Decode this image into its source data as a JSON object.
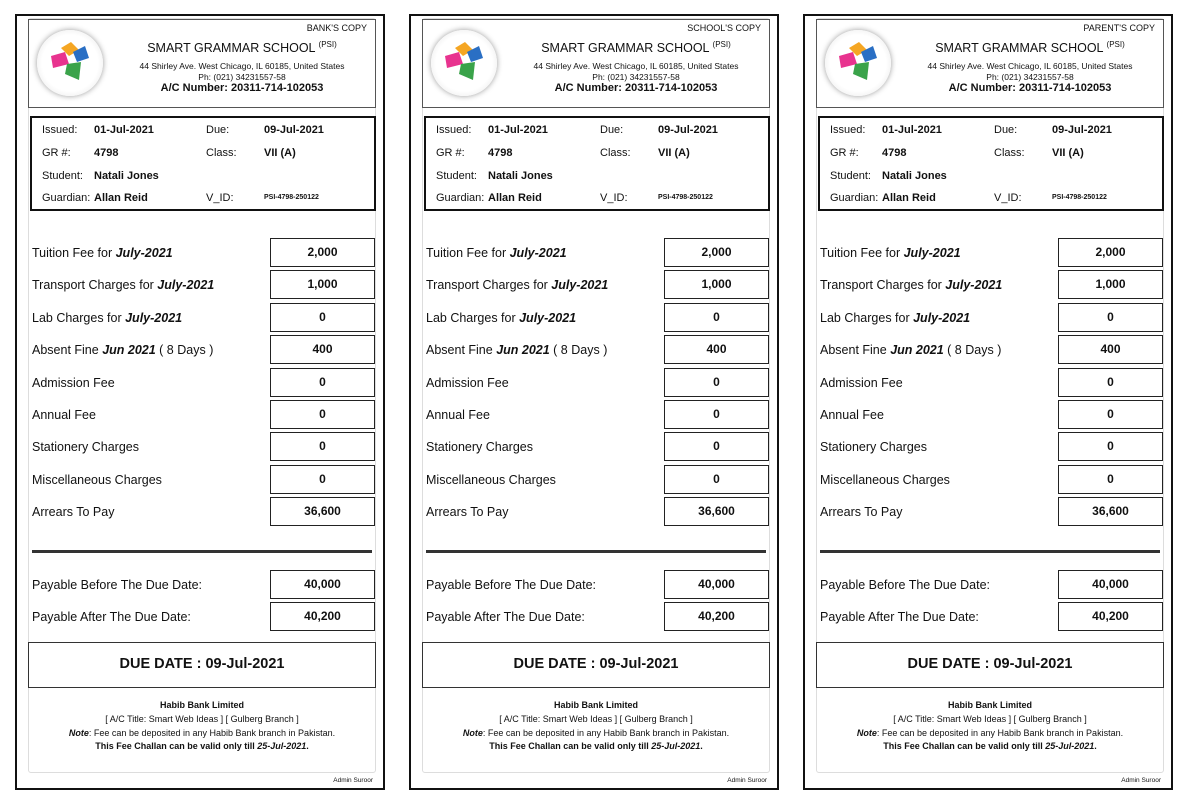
{
  "school": {
    "name": "SMART GRAMMAR SCHOOL",
    "tag": "(PSI)",
    "address": "44 Shirley Ave. West Chicago, IL 60185, United States",
    "phone": "Ph: (021) 34231557-58",
    "ac_number": "A/C Number: 20311-714-102053"
  },
  "copies": [
    {
      "label": "BANK'S COPY"
    },
    {
      "label": "SCHOOL'S COPY"
    },
    {
      "label": "PARENT'S COPY"
    }
  ],
  "info": {
    "issued_k": "Issued:",
    "issued": "01-Jul-2021",
    "due_k": "Due:",
    "due": "09-Jul-2021",
    "gr_k": "GR #:",
    "gr": "4798",
    "class_k": "Class:",
    "class": "VII (A)",
    "student_k": "Student:",
    "student": "Natali Jones",
    "guardian_k": "Guardian:",
    "guardian": "Allan Reid",
    "vid_k": "V_ID:",
    "vid": "PSI-4798-250122"
  },
  "fees": [
    {
      "pre": "Tuition Fee for ",
      "em": "July-2021",
      "post": "",
      "value": "2,000"
    },
    {
      "pre": "Transport Charges for ",
      "em": "July-2021",
      "post": "",
      "value": "1,000"
    },
    {
      "pre": "Lab Charges for ",
      "em": "July-2021",
      "post": "",
      "value": "0"
    },
    {
      "pre": "Absent Fine ",
      "em": "Jun 2021",
      "post": " ( 8 Days )",
      "value": "400"
    },
    {
      "pre": "Admission Fee",
      "em": "",
      "post": "",
      "value": "0"
    },
    {
      "pre": "Annual Fee",
      "em": "",
      "post": "",
      "value": "0"
    },
    {
      "pre": "Stationery Charges",
      "em": "",
      "post": "",
      "value": "0"
    },
    {
      "pre": "Miscellaneous Charges",
      "em": "",
      "post": "",
      "value": "0"
    },
    {
      "pre": "Arrears To Pay",
      "em": "",
      "post": "",
      "value": "36,600"
    }
  ],
  "payable": [
    {
      "label": "Payable Before The Due Date:",
      "value": "40,000"
    },
    {
      "label": "Payable After The Due Date:",
      "value": "40,200"
    }
  ],
  "due_date": "DUE DATE : 09-Jul-2021",
  "footer": {
    "bank": "Habib Bank Limited",
    "title": "[ A/C Title: Smart Web Ideas ] [ Gulberg Branch ]",
    "note_k": "Note",
    "note": ": Fee can be deposited in any Habib Bank branch in Pakistan.",
    "valid_pre": "This Fee Challan can be valid only till ",
    "valid_date": "25-Jul-2021",
    "valid_post": "."
  },
  "admin": "Admin Suroor"
}
